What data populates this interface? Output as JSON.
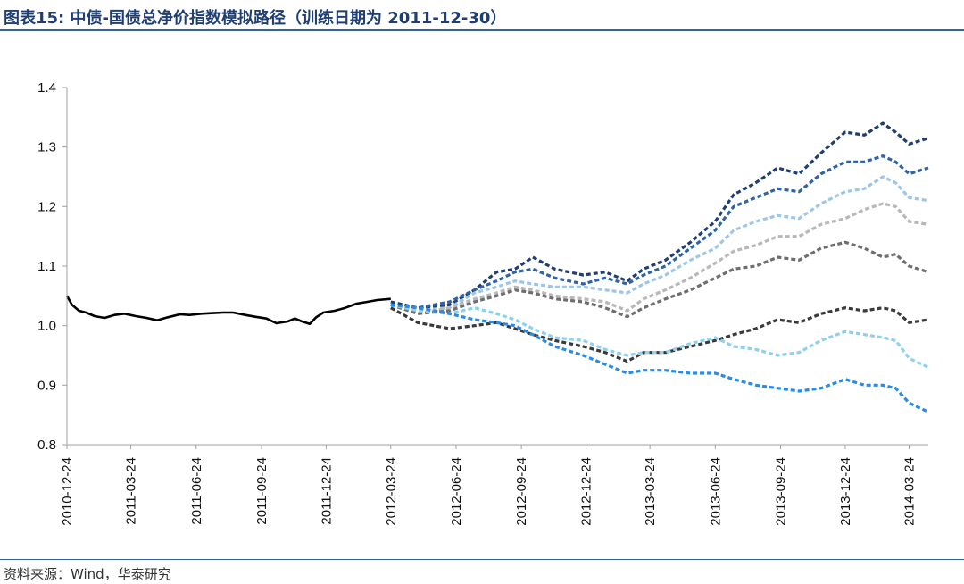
{
  "header": {
    "title": "图表15:  中债-国债总净价指数模拟路径（训练日期为 2011-12-30）"
  },
  "footer": {
    "source": "资料来源：Wind，华泰研究"
  },
  "chart_data": {
    "type": "line",
    "title": "图表15:  中债-国债总净价指数模拟路径（训练日期为 2011-12-30）",
    "xlabel": "",
    "ylabel": "",
    "x_axis_type": "date",
    "x_range": [
      "2010-12-24",
      "2014-04-20"
    ],
    "ylim": [
      0.8,
      1.4
    ],
    "y_ticks": [
      0.8,
      0.9,
      1.0,
      1.1,
      1.2,
      1.3,
      1.4
    ],
    "y_tick_labels": [
      "0.8",
      "0.9",
      "1.0",
      "1.1",
      "1.2",
      "1.3",
      "1.4"
    ],
    "x_tick_labels": [
      "2010-12-24",
      "2011-03-24",
      "2011-06-24",
      "2011-09-24",
      "2011-12-24",
      "2012-03-24",
      "2012-06-24",
      "2012-09-24",
      "2012-12-24",
      "2013-03-24",
      "2013-06-24",
      "2013-09-24",
      "2013-12-24",
      "2014-03-24"
    ],
    "grid": false,
    "legend": "none",
    "history": {
      "style": "solid",
      "color": "#000000",
      "points": [
        [
          "2010-12-24",
          1.05
        ],
        [
          "2010-12-31",
          1.035
        ],
        [
          "2011-01-10",
          1.025
        ],
        [
          "2011-01-20",
          1.022
        ],
        [
          "2011-02-01",
          1.016
        ],
        [
          "2011-02-15",
          1.013
        ],
        [
          "2011-03-01",
          1.018
        ],
        [
          "2011-03-15",
          1.02
        ],
        [
          "2011-03-31",
          1.016
        ],
        [
          "2011-04-15",
          1.013
        ],
        [
          "2011-04-30",
          1.009
        ],
        [
          "2011-05-15",
          1.014
        ],
        [
          "2011-06-01",
          1.019
        ],
        [
          "2011-06-15",
          1.018
        ],
        [
          "2011-07-01",
          1.02
        ],
        [
          "2011-07-15",
          1.021
        ],
        [
          "2011-08-01",
          1.022
        ],
        [
          "2011-08-15",
          1.022
        ],
        [
          "2011-09-01",
          1.018
        ],
        [
          "2011-09-15",
          1.015
        ],
        [
          "2011-10-01",
          1.012
        ],
        [
          "2011-10-15",
          1.004
        ],
        [
          "2011-10-31",
          1.007
        ],
        [
          "2011-11-10",
          1.012
        ],
        [
          "2011-11-20",
          1.007
        ],
        [
          "2011-12-01",
          1.003
        ],
        [
          "2011-12-10",
          1.014
        ],
        [
          "2011-12-20",
          1.022
        ],
        [
          "2012-01-05",
          1.025
        ],
        [
          "2012-01-20",
          1.03
        ],
        [
          "2012-02-05",
          1.037
        ],
        [
          "2012-02-20",
          1.04
        ],
        [
          "2012-03-05",
          1.043
        ],
        [
          "2012-03-24",
          1.045
        ]
      ]
    },
    "series": [
      {
        "color": "#1f3f73",
        "points": [
          [
            "2012-03-24",
            1.04
          ],
          [
            "2012-05-01",
            1.03
          ],
          [
            "2012-06-15",
            1.035
          ],
          [
            "2012-07-20",
            1.06
          ],
          [
            "2012-08-20",
            1.09
          ],
          [
            "2012-09-15",
            1.095
          ],
          [
            "2012-10-10",
            1.115
          ],
          [
            "2012-11-10",
            1.095
          ],
          [
            "2012-12-20",
            1.085
          ],
          [
            "2013-01-20",
            1.09
          ],
          [
            "2013-02-20",
            1.075
          ],
          [
            "2013-03-15",
            1.095
          ],
          [
            "2013-04-15",
            1.11
          ],
          [
            "2013-05-20",
            1.14
          ],
          [
            "2013-06-24",
            1.175
          ],
          [
            "2013-07-20",
            1.22
          ],
          [
            "2013-08-20",
            1.24
          ],
          [
            "2013-09-20",
            1.265
          ],
          [
            "2013-10-20",
            1.255
          ],
          [
            "2013-11-20",
            1.29
          ],
          [
            "2013-12-24",
            1.325
          ],
          [
            "2014-01-20",
            1.32
          ],
          [
            "2014-02-15",
            1.34
          ],
          [
            "2014-03-05",
            1.325
          ],
          [
            "2014-03-24",
            1.305
          ],
          [
            "2014-04-20",
            1.315
          ]
        ]
      },
      {
        "color": "#2f63a4",
        "points": [
          [
            "2012-03-24",
            1.035
          ],
          [
            "2012-05-01",
            1.03
          ],
          [
            "2012-06-15",
            1.04
          ],
          [
            "2012-07-20",
            1.06
          ],
          [
            "2012-08-20",
            1.075
          ],
          [
            "2012-09-15",
            1.09
          ],
          [
            "2012-10-10",
            1.095
          ],
          [
            "2012-11-10",
            1.08
          ],
          [
            "2012-12-20",
            1.07
          ],
          [
            "2013-01-20",
            1.08
          ],
          [
            "2013-02-20",
            1.07
          ],
          [
            "2013-03-15",
            1.085
          ],
          [
            "2013-04-15",
            1.1
          ],
          [
            "2013-05-20",
            1.13
          ],
          [
            "2013-06-24",
            1.16
          ],
          [
            "2013-07-20",
            1.2
          ],
          [
            "2013-08-20",
            1.215
          ],
          [
            "2013-09-20",
            1.23
          ],
          [
            "2013-10-20",
            1.225
          ],
          [
            "2013-11-20",
            1.255
          ],
          [
            "2013-12-24",
            1.275
          ],
          [
            "2014-01-20",
            1.275
          ],
          [
            "2014-02-15",
            1.285
          ],
          [
            "2014-03-05",
            1.275
          ],
          [
            "2014-03-24",
            1.255
          ],
          [
            "2014-04-20",
            1.265
          ]
        ]
      },
      {
        "color": "#9ec6e8",
        "points": [
          [
            "2012-03-24",
            1.035
          ],
          [
            "2012-05-01",
            1.025
          ],
          [
            "2012-06-15",
            1.03
          ],
          [
            "2012-07-20",
            1.055
          ],
          [
            "2012-08-20",
            1.065
          ],
          [
            "2012-09-15",
            1.075
          ],
          [
            "2012-10-10",
            1.07
          ],
          [
            "2012-11-10",
            1.065
          ],
          [
            "2012-12-20",
            1.065
          ],
          [
            "2013-01-20",
            1.06
          ],
          [
            "2013-02-20",
            1.055
          ],
          [
            "2013-03-15",
            1.07
          ],
          [
            "2013-04-15",
            1.085
          ],
          [
            "2013-05-20",
            1.11
          ],
          [
            "2013-06-24",
            1.13
          ],
          [
            "2013-07-20",
            1.16
          ],
          [
            "2013-08-20",
            1.175
          ],
          [
            "2013-09-20",
            1.185
          ],
          [
            "2013-10-20",
            1.18
          ],
          [
            "2013-11-20",
            1.205
          ],
          [
            "2013-12-24",
            1.225
          ],
          [
            "2014-01-20",
            1.23
          ],
          [
            "2014-02-15",
            1.25
          ],
          [
            "2014-03-05",
            1.24
          ],
          [
            "2014-03-24",
            1.215
          ],
          [
            "2014-04-20",
            1.21
          ]
        ]
      },
      {
        "color": "#b8b8b8",
        "points": [
          [
            "2012-03-24",
            1.035
          ],
          [
            "2012-05-01",
            1.02
          ],
          [
            "2012-06-15",
            1.03
          ],
          [
            "2012-07-20",
            1.045
          ],
          [
            "2012-08-20",
            1.055
          ],
          [
            "2012-09-15",
            1.065
          ],
          [
            "2012-10-10",
            1.06
          ],
          [
            "2012-11-10",
            1.05
          ],
          [
            "2012-12-20",
            1.045
          ],
          [
            "2013-01-20",
            1.04
          ],
          [
            "2013-02-20",
            1.025
          ],
          [
            "2013-03-15",
            1.045
          ],
          [
            "2013-04-15",
            1.06
          ],
          [
            "2013-05-20",
            1.08
          ],
          [
            "2013-06-24",
            1.105
          ],
          [
            "2013-07-20",
            1.125
          ],
          [
            "2013-08-20",
            1.135
          ],
          [
            "2013-09-20",
            1.15
          ],
          [
            "2013-10-20",
            1.15
          ],
          [
            "2013-11-20",
            1.17
          ],
          [
            "2013-12-24",
            1.18
          ],
          [
            "2014-01-20",
            1.195
          ],
          [
            "2014-02-15",
            1.205
          ],
          [
            "2014-03-05",
            1.2
          ],
          [
            "2014-03-24",
            1.175
          ],
          [
            "2014-04-20",
            1.17
          ]
        ]
      },
      {
        "color": "#6e6e6e",
        "points": [
          [
            "2012-03-24",
            1.035
          ],
          [
            "2012-05-01",
            1.02
          ],
          [
            "2012-06-15",
            1.025
          ],
          [
            "2012-07-20",
            1.04
          ],
          [
            "2012-08-20",
            1.05
          ],
          [
            "2012-09-15",
            1.06
          ],
          [
            "2012-10-10",
            1.055
          ],
          [
            "2012-11-10",
            1.045
          ],
          [
            "2012-12-20",
            1.04
          ],
          [
            "2013-01-20",
            1.03
          ],
          [
            "2013-02-20",
            1.015
          ],
          [
            "2013-03-15",
            1.03
          ],
          [
            "2013-04-15",
            1.045
          ],
          [
            "2013-05-20",
            1.06
          ],
          [
            "2013-06-24",
            1.08
          ],
          [
            "2013-07-20",
            1.095
          ],
          [
            "2013-08-20",
            1.1
          ],
          [
            "2013-09-20",
            1.115
          ],
          [
            "2013-10-20",
            1.11
          ],
          [
            "2013-11-20",
            1.13
          ],
          [
            "2013-12-24",
            1.14
          ],
          [
            "2014-01-20",
            1.13
          ],
          [
            "2014-02-15",
            1.115
          ],
          [
            "2014-03-05",
            1.12
          ],
          [
            "2014-03-24",
            1.1
          ],
          [
            "2014-04-20",
            1.09
          ]
        ]
      },
      {
        "color": "#3a3a3a",
        "points": [
          [
            "2012-03-24",
            1.03
          ],
          [
            "2012-05-01",
            1.005
          ],
          [
            "2012-06-15",
            0.995
          ],
          [
            "2012-07-20",
            1.0
          ],
          [
            "2012-08-20",
            1.005
          ],
          [
            "2012-09-15",
            0.995
          ],
          [
            "2012-10-10",
            0.985
          ],
          [
            "2012-11-10",
            0.975
          ],
          [
            "2012-12-20",
            0.965
          ],
          [
            "2013-01-20",
            0.955
          ],
          [
            "2013-02-20",
            0.94
          ],
          [
            "2013-03-15",
            0.955
          ],
          [
            "2013-04-15",
            0.955
          ],
          [
            "2013-05-20",
            0.965
          ],
          [
            "2013-06-24",
            0.975
          ],
          [
            "2013-07-20",
            0.985
          ],
          [
            "2013-08-20",
            0.995
          ],
          [
            "2013-09-20",
            1.01
          ],
          [
            "2013-10-20",
            1.005
          ],
          [
            "2013-11-20",
            1.02
          ],
          [
            "2013-12-24",
            1.03
          ],
          [
            "2014-01-20",
            1.025
          ],
          [
            "2014-02-15",
            1.03
          ],
          [
            "2014-03-05",
            1.025
          ],
          [
            "2014-03-24",
            1.005
          ],
          [
            "2014-04-20",
            1.01
          ]
        ]
      },
      {
        "color": "#8fd0ee",
        "points": [
          [
            "2012-03-24",
            1.035
          ],
          [
            "2012-05-01",
            1.025
          ],
          [
            "2012-06-15",
            1.02
          ],
          [
            "2012-07-20",
            1.03
          ],
          [
            "2012-08-20",
            1.02
          ],
          [
            "2012-09-15",
            1.01
          ],
          [
            "2012-10-10",
            0.995
          ],
          [
            "2012-11-10",
            0.98
          ],
          [
            "2012-12-20",
            0.975
          ],
          [
            "2013-01-20",
            0.96
          ],
          [
            "2013-02-20",
            0.95
          ],
          [
            "2013-03-15",
            0.955
          ],
          [
            "2013-04-15",
            0.955
          ],
          [
            "2013-05-20",
            0.97
          ],
          [
            "2013-06-24",
            0.98
          ],
          [
            "2013-07-20",
            0.965
          ],
          [
            "2013-08-20",
            0.96
          ],
          [
            "2013-09-20",
            0.95
          ],
          [
            "2013-10-20",
            0.955
          ],
          [
            "2013-11-20",
            0.975
          ],
          [
            "2013-12-24",
            0.99
          ],
          [
            "2014-01-20",
            0.985
          ],
          [
            "2014-02-15",
            0.98
          ],
          [
            "2014-03-05",
            0.975
          ],
          [
            "2014-03-24",
            0.945
          ],
          [
            "2014-04-20",
            0.93
          ]
        ]
      },
      {
        "color": "#2b8ae6",
        "points": [
          [
            "2012-03-24",
            1.035
          ],
          [
            "2012-05-01",
            1.03
          ],
          [
            "2012-06-15",
            1.02
          ],
          [
            "2012-07-20",
            1.01
          ],
          [
            "2012-08-20",
            1.005
          ],
          [
            "2012-09-15",
            1.0
          ],
          [
            "2012-10-10",
            0.985
          ],
          [
            "2012-11-10",
            0.965
          ],
          [
            "2012-12-20",
            0.95
          ],
          [
            "2013-01-20",
            0.935
          ],
          [
            "2013-02-20",
            0.92
          ],
          [
            "2013-03-15",
            0.925
          ],
          [
            "2013-04-15",
            0.925
          ],
          [
            "2013-05-20",
            0.92
          ],
          [
            "2013-06-24",
            0.92
          ],
          [
            "2013-07-20",
            0.91
          ],
          [
            "2013-08-20",
            0.9
          ],
          [
            "2013-09-20",
            0.895
          ],
          [
            "2013-10-20",
            0.89
          ],
          [
            "2013-11-20",
            0.895
          ],
          [
            "2013-12-24",
            0.91
          ],
          [
            "2014-01-20",
            0.9
          ],
          [
            "2014-02-15",
            0.9
          ],
          [
            "2014-03-05",
            0.895
          ],
          [
            "2014-03-24",
            0.87
          ],
          [
            "2014-04-20",
            0.855
          ]
        ]
      }
    ]
  }
}
